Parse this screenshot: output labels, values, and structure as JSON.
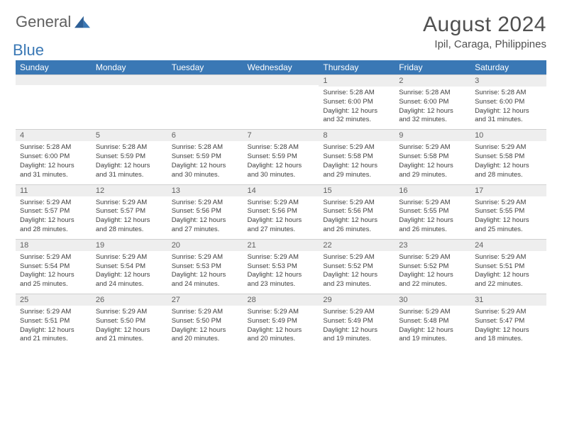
{
  "logo": {
    "text1": "General",
    "text2": "Blue"
  },
  "title": "August 2024",
  "location": "Ipil, Caraga, Philippines",
  "colors": {
    "header_bg": "#3a78b5",
    "daynum_bg": "#eeeeee",
    "text": "#404040"
  },
  "day_headers": [
    "Sunday",
    "Monday",
    "Tuesday",
    "Wednesday",
    "Thursday",
    "Friday",
    "Saturday"
  ],
  "weeks": [
    [
      {
        "n": "",
        "sunrise": "",
        "sunset": "",
        "daylight": ""
      },
      {
        "n": "",
        "sunrise": "",
        "sunset": "",
        "daylight": ""
      },
      {
        "n": "",
        "sunrise": "",
        "sunset": "",
        "daylight": ""
      },
      {
        "n": "",
        "sunrise": "",
        "sunset": "",
        "daylight": ""
      },
      {
        "n": "1",
        "sunrise": "Sunrise: 5:28 AM",
        "sunset": "Sunset: 6:00 PM",
        "daylight": "Daylight: 12 hours and 32 minutes."
      },
      {
        "n": "2",
        "sunrise": "Sunrise: 5:28 AM",
        "sunset": "Sunset: 6:00 PM",
        "daylight": "Daylight: 12 hours and 32 minutes."
      },
      {
        "n": "3",
        "sunrise": "Sunrise: 5:28 AM",
        "sunset": "Sunset: 6:00 PM",
        "daylight": "Daylight: 12 hours and 31 minutes."
      }
    ],
    [
      {
        "n": "4",
        "sunrise": "Sunrise: 5:28 AM",
        "sunset": "Sunset: 6:00 PM",
        "daylight": "Daylight: 12 hours and 31 minutes."
      },
      {
        "n": "5",
        "sunrise": "Sunrise: 5:28 AM",
        "sunset": "Sunset: 5:59 PM",
        "daylight": "Daylight: 12 hours and 31 minutes."
      },
      {
        "n": "6",
        "sunrise": "Sunrise: 5:28 AM",
        "sunset": "Sunset: 5:59 PM",
        "daylight": "Daylight: 12 hours and 30 minutes."
      },
      {
        "n": "7",
        "sunrise": "Sunrise: 5:28 AM",
        "sunset": "Sunset: 5:59 PM",
        "daylight": "Daylight: 12 hours and 30 minutes."
      },
      {
        "n": "8",
        "sunrise": "Sunrise: 5:29 AM",
        "sunset": "Sunset: 5:58 PM",
        "daylight": "Daylight: 12 hours and 29 minutes."
      },
      {
        "n": "9",
        "sunrise": "Sunrise: 5:29 AM",
        "sunset": "Sunset: 5:58 PM",
        "daylight": "Daylight: 12 hours and 29 minutes."
      },
      {
        "n": "10",
        "sunrise": "Sunrise: 5:29 AM",
        "sunset": "Sunset: 5:58 PM",
        "daylight": "Daylight: 12 hours and 28 minutes."
      }
    ],
    [
      {
        "n": "11",
        "sunrise": "Sunrise: 5:29 AM",
        "sunset": "Sunset: 5:57 PM",
        "daylight": "Daylight: 12 hours and 28 minutes."
      },
      {
        "n": "12",
        "sunrise": "Sunrise: 5:29 AM",
        "sunset": "Sunset: 5:57 PM",
        "daylight": "Daylight: 12 hours and 28 minutes."
      },
      {
        "n": "13",
        "sunrise": "Sunrise: 5:29 AM",
        "sunset": "Sunset: 5:56 PM",
        "daylight": "Daylight: 12 hours and 27 minutes."
      },
      {
        "n": "14",
        "sunrise": "Sunrise: 5:29 AM",
        "sunset": "Sunset: 5:56 PM",
        "daylight": "Daylight: 12 hours and 27 minutes."
      },
      {
        "n": "15",
        "sunrise": "Sunrise: 5:29 AM",
        "sunset": "Sunset: 5:56 PM",
        "daylight": "Daylight: 12 hours and 26 minutes."
      },
      {
        "n": "16",
        "sunrise": "Sunrise: 5:29 AM",
        "sunset": "Sunset: 5:55 PM",
        "daylight": "Daylight: 12 hours and 26 minutes."
      },
      {
        "n": "17",
        "sunrise": "Sunrise: 5:29 AM",
        "sunset": "Sunset: 5:55 PM",
        "daylight": "Daylight: 12 hours and 25 minutes."
      }
    ],
    [
      {
        "n": "18",
        "sunrise": "Sunrise: 5:29 AM",
        "sunset": "Sunset: 5:54 PM",
        "daylight": "Daylight: 12 hours and 25 minutes."
      },
      {
        "n": "19",
        "sunrise": "Sunrise: 5:29 AM",
        "sunset": "Sunset: 5:54 PM",
        "daylight": "Daylight: 12 hours and 24 minutes."
      },
      {
        "n": "20",
        "sunrise": "Sunrise: 5:29 AM",
        "sunset": "Sunset: 5:53 PM",
        "daylight": "Daylight: 12 hours and 24 minutes."
      },
      {
        "n": "21",
        "sunrise": "Sunrise: 5:29 AM",
        "sunset": "Sunset: 5:53 PM",
        "daylight": "Daylight: 12 hours and 23 minutes."
      },
      {
        "n": "22",
        "sunrise": "Sunrise: 5:29 AM",
        "sunset": "Sunset: 5:52 PM",
        "daylight": "Daylight: 12 hours and 23 minutes."
      },
      {
        "n": "23",
        "sunrise": "Sunrise: 5:29 AM",
        "sunset": "Sunset: 5:52 PM",
        "daylight": "Daylight: 12 hours and 22 minutes."
      },
      {
        "n": "24",
        "sunrise": "Sunrise: 5:29 AM",
        "sunset": "Sunset: 5:51 PM",
        "daylight": "Daylight: 12 hours and 22 minutes."
      }
    ],
    [
      {
        "n": "25",
        "sunrise": "Sunrise: 5:29 AM",
        "sunset": "Sunset: 5:51 PM",
        "daylight": "Daylight: 12 hours and 21 minutes."
      },
      {
        "n": "26",
        "sunrise": "Sunrise: 5:29 AM",
        "sunset": "Sunset: 5:50 PM",
        "daylight": "Daylight: 12 hours and 21 minutes."
      },
      {
        "n": "27",
        "sunrise": "Sunrise: 5:29 AM",
        "sunset": "Sunset: 5:50 PM",
        "daylight": "Daylight: 12 hours and 20 minutes."
      },
      {
        "n": "28",
        "sunrise": "Sunrise: 5:29 AM",
        "sunset": "Sunset: 5:49 PM",
        "daylight": "Daylight: 12 hours and 20 minutes."
      },
      {
        "n": "29",
        "sunrise": "Sunrise: 5:29 AM",
        "sunset": "Sunset: 5:49 PM",
        "daylight": "Daylight: 12 hours and 19 minutes."
      },
      {
        "n": "30",
        "sunrise": "Sunrise: 5:29 AM",
        "sunset": "Sunset: 5:48 PM",
        "daylight": "Daylight: 12 hours and 19 minutes."
      },
      {
        "n": "31",
        "sunrise": "Sunrise: 5:29 AM",
        "sunset": "Sunset: 5:47 PM",
        "daylight": "Daylight: 12 hours and 18 minutes."
      }
    ]
  ]
}
